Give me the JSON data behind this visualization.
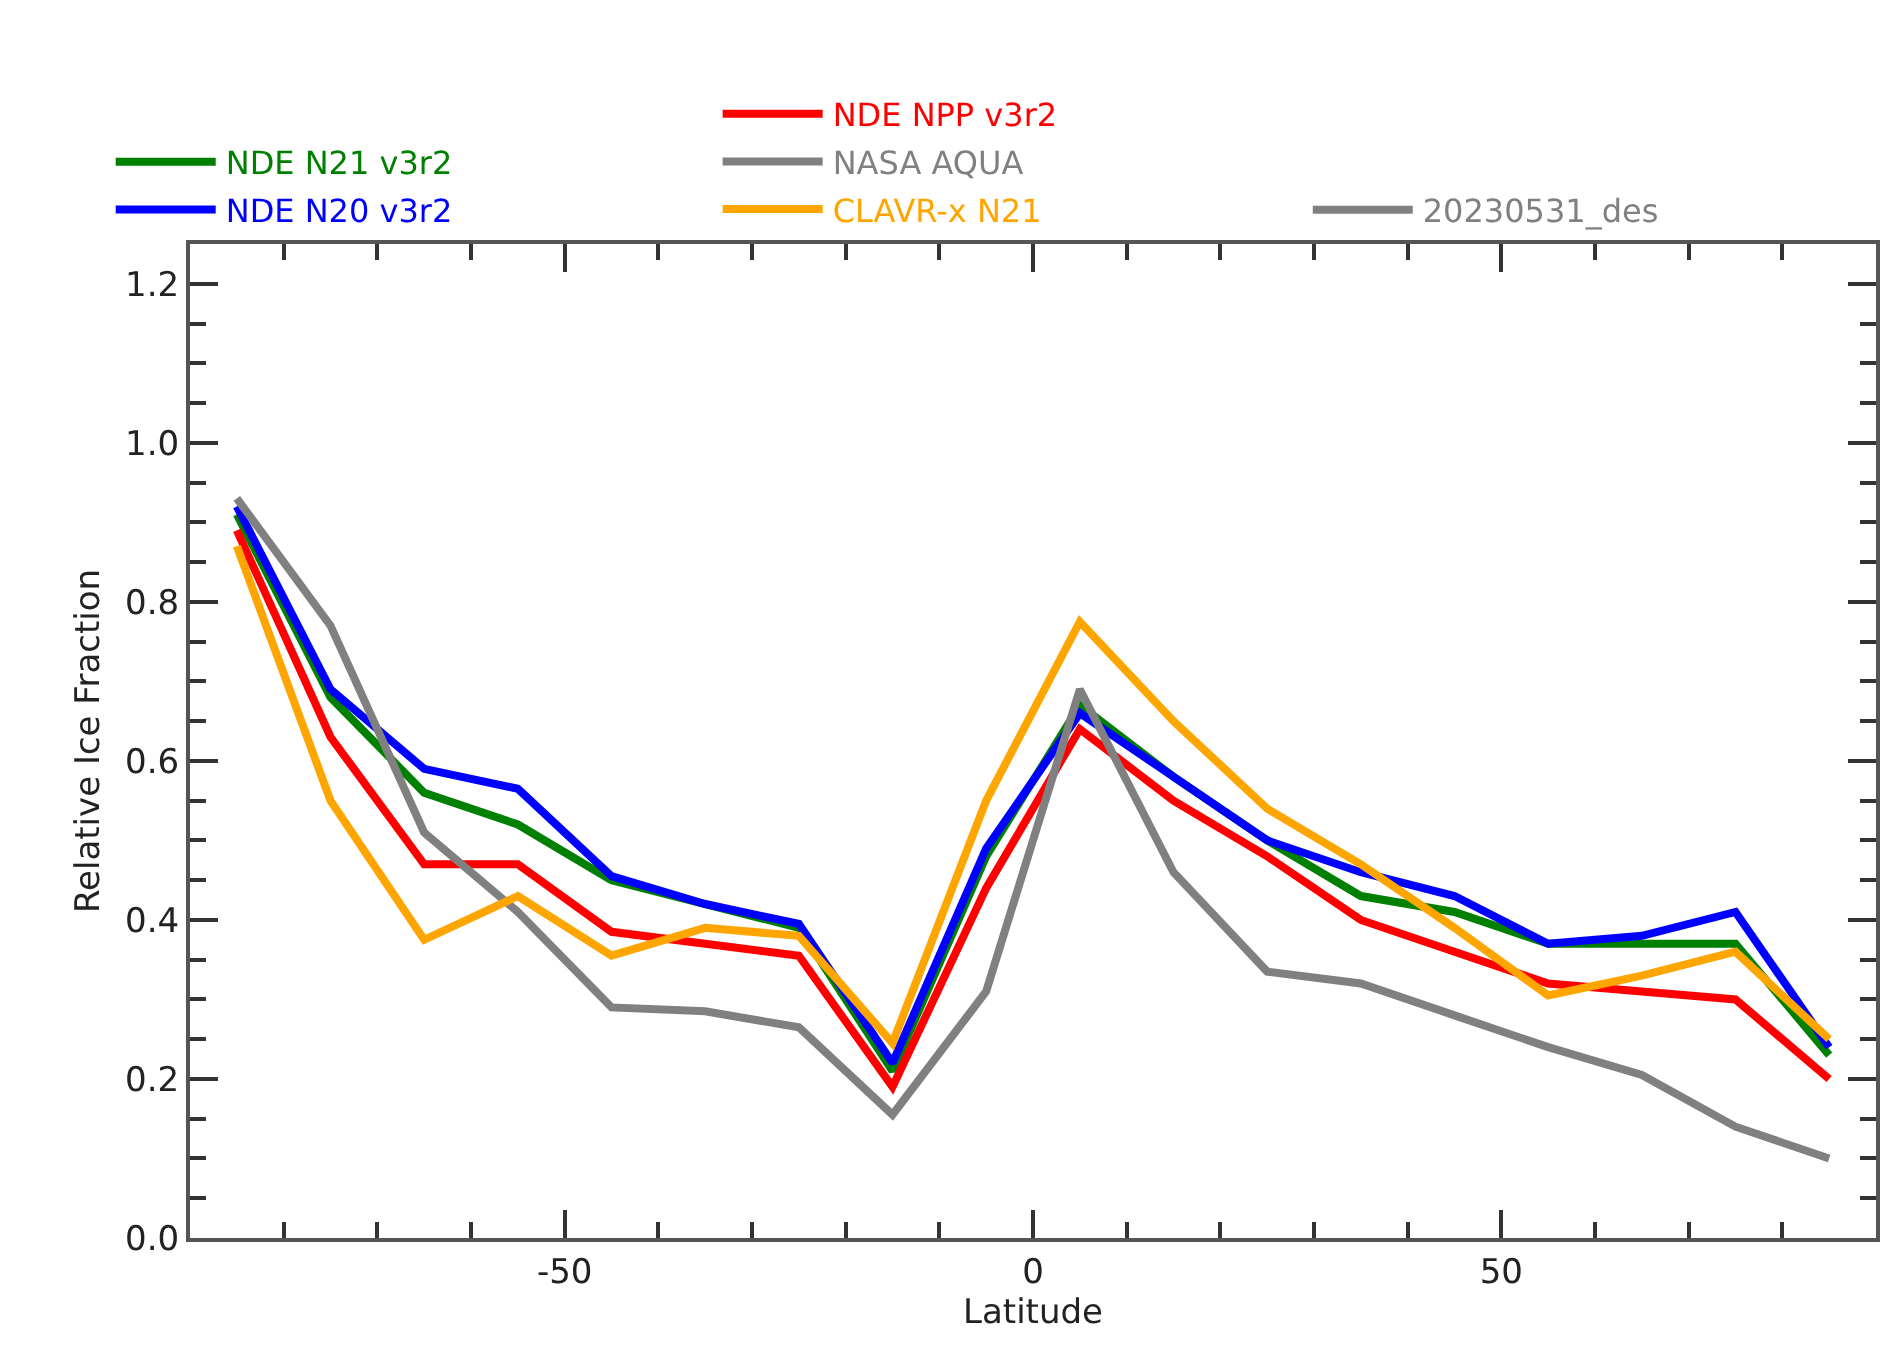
{
  "chart_data": {
    "type": "line",
    "xlabel": "Latitude",
    "ylabel": "Relative Ice Fraction",
    "x": [
      -85,
      -75,
      -65,
      -55,
      -45,
      -35,
      -25,
      -15,
      -5,
      5,
      15,
      25,
      35,
      45,
      55,
      65,
      75,
      85
    ],
    "xlim": [
      -90,
      90
    ],
    "xticks": [
      -50,
      0,
      50
    ],
    "ylim": [
      0,
      1.25
    ],
    "yticks": [
      {
        "value": 0,
        "label": "0.0"
      },
      {
        "value": 0.2,
        "label": "0.2"
      },
      {
        "value": 0.4,
        "label": "0.4"
      },
      {
        "value": 0.6,
        "label": "0.6"
      },
      {
        "value": 0.8,
        "label": "0.8"
      },
      {
        "value": 1.0,
        "label": "1.0"
      },
      {
        "value": 1.2,
        "label": "1.2"
      }
    ],
    "legend": "top",
    "marker": "none",
    "line_style": "solid",
    "series": [
      {
        "name": "NDE N21 v3r2",
        "color": "#008000",
        "values": [
          0.91,
          0.68,
          0.56,
          0.52,
          0.45,
          0.42,
          0.39,
          0.21,
          0.48,
          0.67,
          0.58,
          0.5,
          0.43,
          0.41,
          0.37,
          0.37,
          0.37,
          0.23
        ]
      },
      {
        "name": "NDE N20 v3r2",
        "color": "#0000ff",
        "values": [
          0.92,
          0.69,
          0.59,
          0.565,
          0.455,
          0.42,
          0.395,
          0.22,
          0.49,
          0.66,
          0.58,
          0.5,
          0.46,
          0.43,
          0.37,
          0.38,
          0.41,
          0.24
        ]
      },
      {
        "name": "NDE NPP v3r2",
        "color": "#ff0000",
        "values": [
          0.89,
          0.63,
          0.47,
          0.47,
          0.385,
          0.37,
          0.355,
          0.19,
          0.44,
          0.64,
          0.55,
          0.48,
          0.4,
          0.36,
          0.32,
          0.31,
          0.3,
          0.2
        ]
      },
      {
        "name": "NASA AQUA",
        "color": "#808080",
        "values": [
          0.93,
          0.77,
          0.51,
          0.41,
          0.29,
          0.285,
          0.265,
          0.155,
          0.31,
          0.69,
          0.46,
          0.335,
          0.32,
          0.28,
          0.24,
          0.205,
          0.14,
          0.1
        ]
      },
      {
        "name": "CLAVR-x N21",
        "color": "#ffa500",
        "values": [
          0.87,
          0.55,
          0.375,
          0.43,
          0.355,
          0.39,
          0.38,
          0.245,
          0.55,
          0.775,
          0.65,
          0.54,
          0.47,
          0.39,
          0.305,
          0.33,
          0.36,
          0.25
        ]
      },
      {
        "name": "20230531_des",
        "color": "#808080",
        "values": [
          null,
          null,
          null,
          null,
          null,
          null,
          null,
          null,
          null,
          null,
          null,
          null,
          null,
          null,
          null,
          null,
          null,
          null
        ]
      }
    ]
  }
}
